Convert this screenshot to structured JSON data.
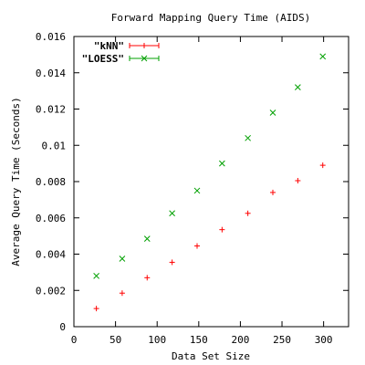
{
  "chart_data": {
    "type": "scatter",
    "title": "Forward Mapping Query Time (AIDS)",
    "xlabel": "Data Set Size",
    "ylabel": "Average Query Time (Seconds)",
    "xlim": [
      0,
      330
    ],
    "ylim": [
      0,
      0.016
    ],
    "x_ticks": [
      "0",
      "50",
      "100",
      "150",
      "200",
      "250",
      "300"
    ],
    "y_ticks": [
      "0",
      "0.002",
      "0.004",
      "0.006",
      "0.008",
      "0.01",
      "0.012",
      "0.014",
      "0.016"
    ],
    "grid": false,
    "legend_position": "top-left",
    "series": [
      {
        "name": "\"kNN\"",
        "marker": "plus",
        "color": "#ff0000",
        "x": [
          27,
          58,
          88,
          118,
          148,
          178,
          209,
          239,
          269,
          299
        ],
        "y": [
          0.001,
          0.00185,
          0.0027,
          0.00355,
          0.00445,
          0.00535,
          0.00625,
          0.0074,
          0.00805,
          0.0089
        ]
      },
      {
        "name": "\"LOESS\"",
        "marker": "x",
        "color": "#00a000",
        "x": [
          27,
          58,
          88,
          118,
          148,
          178,
          209,
          239,
          269,
          299
        ],
        "y": [
          0.0028,
          0.00375,
          0.00485,
          0.00625,
          0.0075,
          0.009,
          0.0104,
          0.0118,
          0.0132,
          0.0149
        ]
      }
    ]
  }
}
